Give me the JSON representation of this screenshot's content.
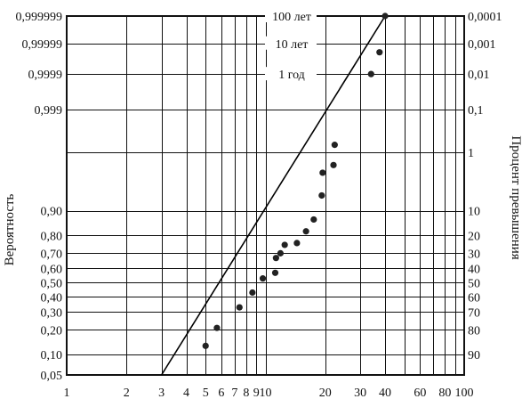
{
  "chart_data": {
    "type": "scatter",
    "title": "",
    "xlabel": "",
    "ylabel_left": "Вероятность",
    "ylabel_right": "Процент превышения",
    "x_scale": "log",
    "xlim": [
      1,
      100
    ],
    "y_scale": "probability (normal)",
    "ylim": [
      0.05,
      0.999999
    ],
    "grid": true,
    "x_ticks": [
      {
        "v": 1,
        "label": "1"
      },
      {
        "v": 2,
        "label": "2"
      },
      {
        "v": 3,
        "label": "3"
      },
      {
        "v": 4,
        "label": "4"
      },
      {
        "v": 5,
        "label": "5"
      },
      {
        "v": 6,
        "label": "6"
      },
      {
        "v": 7,
        "label": "7"
      },
      {
        "v": 8,
        "label": "8"
      },
      {
        "v": 9,
        "label": "9"
      },
      {
        "v": 10,
        "label": "10"
      },
      {
        "v": 20,
        "label": "20"
      },
      {
        "v": 30,
        "label": "30"
      },
      {
        "v": 40,
        "label": "40"
      },
      {
        "v": 60,
        "label": "60"
      },
      {
        "v": 80,
        "label": "80"
      },
      {
        "v": 100,
        "label": "100"
      }
    ],
    "x_grid": [
      1,
      2,
      3,
      4,
      5,
      6,
      7,
      8,
      9,
      10,
      20,
      30,
      40,
      50,
      60,
      70,
      80,
      90,
      100
    ],
    "y_left_ticks": [
      {
        "p": 0.999999,
        "label": "0,999999"
      },
      {
        "p": 0.99999,
        "label": "0,99999"
      },
      {
        "p": 0.9999,
        "label": "0,9999"
      },
      {
        "p": 0.999,
        "label": "0,999"
      },
      {
        "p": 0.9,
        "label": "0,90"
      },
      {
        "p": 0.8,
        "label": "0,80"
      },
      {
        "p": 0.7,
        "label": "0,70"
      },
      {
        "p": 0.6,
        "label": "0,60"
      },
      {
        "p": 0.5,
        "label": "0,50"
      },
      {
        "p": 0.4,
        "label": "0,40"
      },
      {
        "p": 0.3,
        "label": "0,30"
      },
      {
        "p": 0.2,
        "label": "0,20"
      },
      {
        "p": 0.1,
        "label": "0,10"
      },
      {
        "p": 0.05,
        "label": "0,05"
      }
    ],
    "y_right_ticks": [
      {
        "p": 0.999999,
        "label": "0,0001"
      },
      {
        "p": 0.99999,
        "label": "0,001"
      },
      {
        "p": 0.9999,
        "label": "0,01"
      },
      {
        "p": 0.999,
        "label": "0,1"
      },
      {
        "p": 0.99,
        "label": "1"
      },
      {
        "p": 0.9,
        "label": "10"
      },
      {
        "p": 0.8,
        "label": "20"
      },
      {
        "p": 0.7,
        "label": "30"
      },
      {
        "p": 0.6,
        "label": "40"
      },
      {
        "p": 0.5,
        "label": "50"
      },
      {
        "p": 0.4,
        "label": "60"
      },
      {
        "p": 0.3,
        "label": "70"
      },
      {
        "p": 0.2,
        "label": "80"
      },
      {
        "p": 0.1,
        "label": "90"
      }
    ],
    "y_grid": [
      0.999999,
      0.99999,
      0.9999,
      0.999,
      0.99,
      0.9,
      0.8,
      0.7,
      0.6,
      0.5,
      0.4,
      0.3,
      0.2,
      0.1
    ],
    "annotations": [
      {
        "text": "100 лет",
        "p": 0.999999
      },
      {
        "text": "10 лет",
        "p": 0.99999
      },
      {
        "text": "1 год",
        "p": 0.9999
      }
    ],
    "series": [
      {
        "type": "scatter",
        "points": [
          {
            "x": 5.0,
            "p": 0.13
          },
          {
            "x": 5.7,
            "p": 0.21
          },
          {
            "x": 7.4,
            "p": 0.33
          },
          {
            "x": 8.6,
            "p": 0.43
          },
          {
            "x": 9.7,
            "p": 0.53
          },
          {
            "x": 11.2,
            "p": 0.57
          },
          {
            "x": 11.3,
            "p": 0.67
          },
          {
            "x": 11.9,
            "p": 0.7
          },
          {
            "x": 12.5,
            "p": 0.75
          },
          {
            "x": 14.4,
            "p": 0.76
          },
          {
            "x": 16.0,
            "p": 0.82
          },
          {
            "x": 17.5,
            "p": 0.87
          },
          {
            "x": 19.2,
            "p": 0.94
          },
          {
            "x": 19.4,
            "p": 0.975
          },
          {
            "x": 22.0,
            "p": 0.982
          },
          {
            "x": 22.3,
            "p": 0.993
          },
          {
            "x": 34.0,
            "p": 0.9999
          },
          {
            "x": 37.5,
            "p": 0.99998
          },
          {
            "x": 40.0,
            "p": 0.999999
          }
        ]
      },
      {
        "type": "line",
        "points": [
          {
            "x": 3.0,
            "p": 0.05
          },
          {
            "x": 40.0,
            "p": 0.999999
          }
        ]
      }
    ]
  }
}
